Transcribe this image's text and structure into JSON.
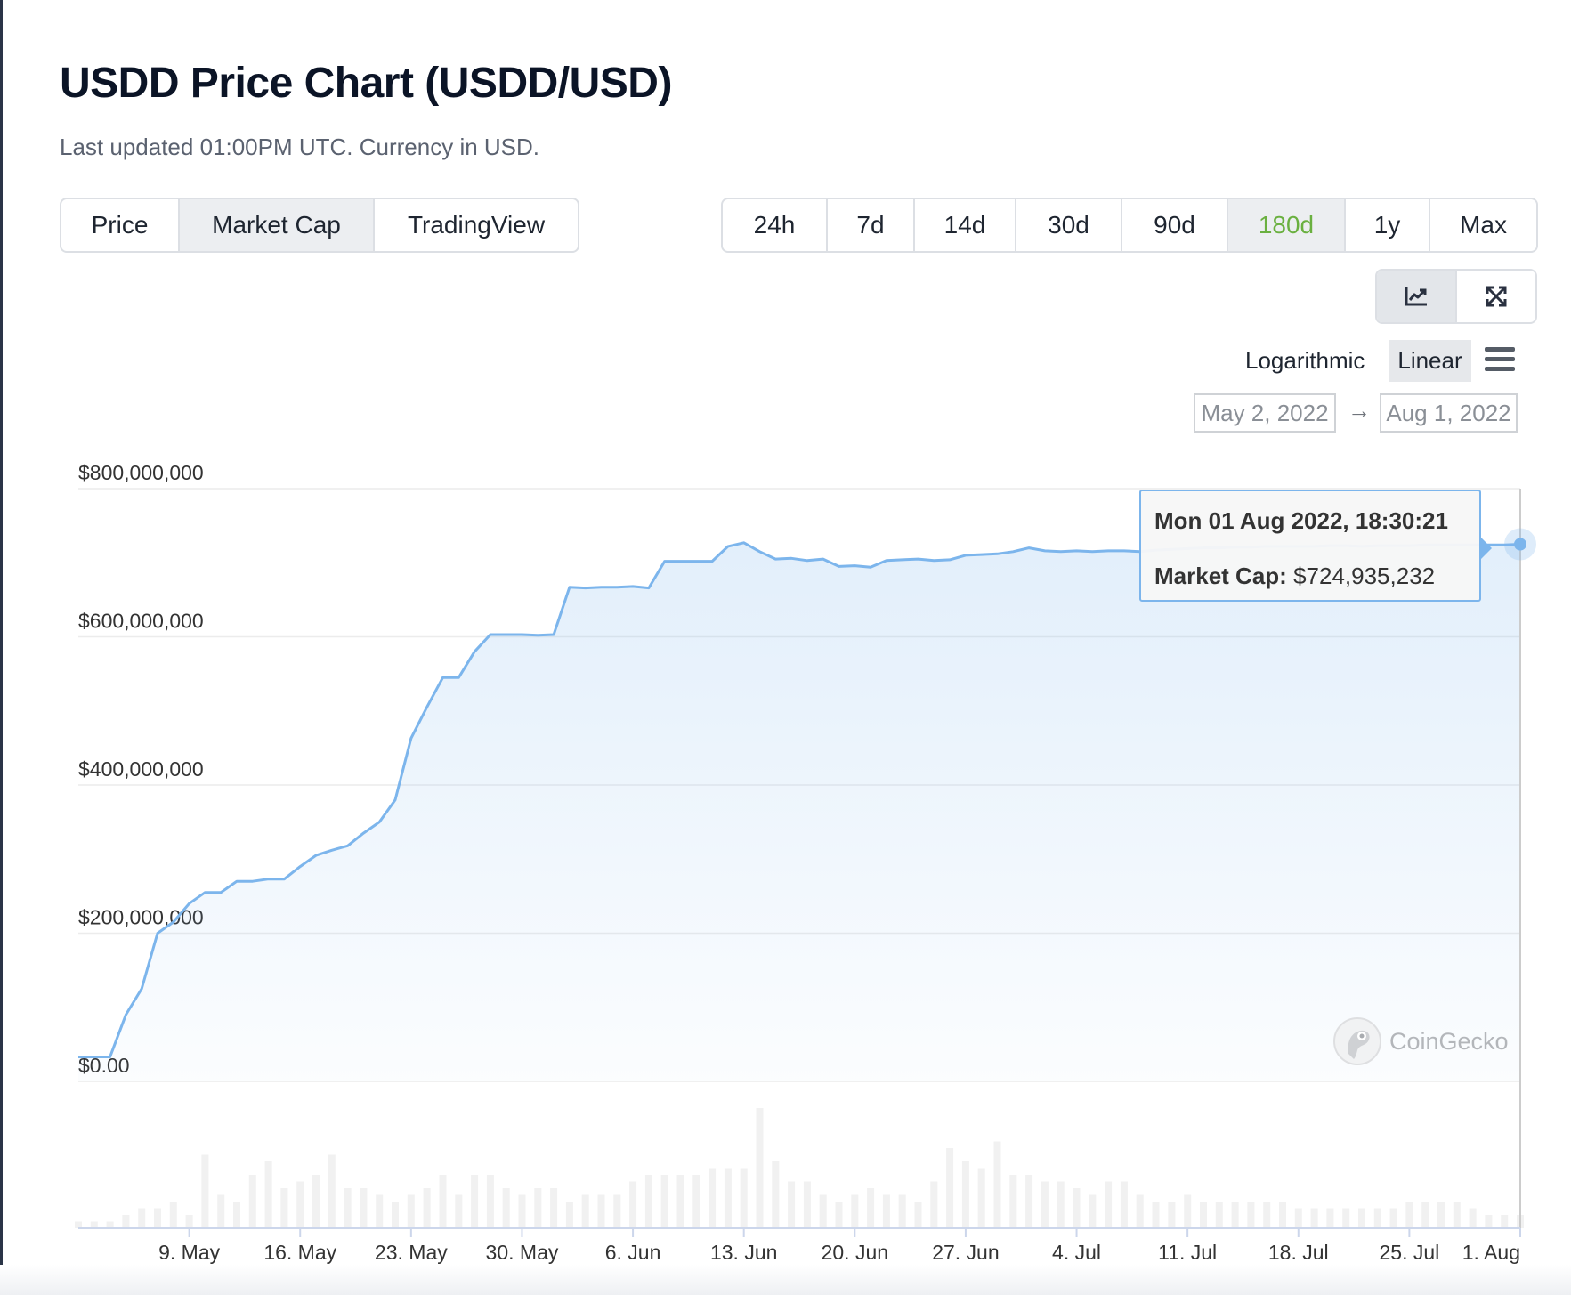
{
  "header": {
    "title": "USDD Price Chart (USDD/USD)",
    "subtitle": "Last updated 01:00PM UTC. Currency in USD."
  },
  "chart_tabs": [
    {
      "label": "Price",
      "active": false
    },
    {
      "label": "Market Cap",
      "active": true
    },
    {
      "label": "TradingView",
      "active": false
    }
  ],
  "time_ranges": [
    {
      "label": "24h",
      "active": false
    },
    {
      "label": "7d",
      "active": false
    },
    {
      "label": "14d",
      "active": false
    },
    {
      "label": "30d",
      "active": false
    },
    {
      "label": "90d",
      "active": false
    },
    {
      "label": "180d",
      "active": true
    },
    {
      "label": "1y",
      "active": false
    },
    {
      "label": "Max",
      "active": false
    }
  ],
  "tools": {
    "chart_icon": "line-chart-icon",
    "expand_icon": "expand-icon",
    "menu_icon": "hamburger-menu-icon"
  },
  "scale": {
    "logarithmic_label": "Logarithmic",
    "linear_label": "Linear",
    "selected": "Linear"
  },
  "date_range": {
    "from": "May 2, 2022",
    "to": "Aug 1, 2022",
    "arrow": "→"
  },
  "tooltip": {
    "date": "Mon 01 Aug 2022, 18:30:21",
    "metric_label": "Market Cap:",
    "metric_value": "$724,935,232"
  },
  "watermark": "CoinGecko",
  "colors": {
    "line": "#7cb5ec",
    "active_range": "#6ab040",
    "volume_bar": "#f1f1f1"
  },
  "chart_data": {
    "type": "area",
    "y_axis": {
      "labels": [
        "$0.00",
        "$200,000,000",
        "$400,000,000",
        "$600,000,000",
        "$800,000,000"
      ],
      "range": [
        0,
        800000000
      ],
      "scale": "linear"
    },
    "x_axis": {
      "labels": [
        "9. May",
        "16. May",
        "23. May",
        "30. May",
        "6. Jun",
        "13. Jun",
        "20. Jun",
        "27. Jun",
        "4. Jul",
        "11. Jul",
        "18. Jul",
        "25. Jul",
        "1. Aug"
      ],
      "range": [
        "2022-05-02",
        "2022-08-01"
      ]
    },
    "grid": true,
    "series": [
      {
        "name": "Market Cap",
        "x": [
          "2022-05-02",
          "2022-05-03",
          "2022-05-04",
          "2022-05-05",
          "2022-05-06",
          "2022-05-07",
          "2022-05-08",
          "2022-05-09",
          "2022-05-10",
          "2022-05-11",
          "2022-05-12",
          "2022-05-13",
          "2022-05-14",
          "2022-05-15",
          "2022-05-16",
          "2022-05-17",
          "2022-05-18",
          "2022-05-19",
          "2022-05-20",
          "2022-05-21",
          "2022-05-22",
          "2022-05-23",
          "2022-05-24",
          "2022-05-25",
          "2022-05-26",
          "2022-05-27",
          "2022-05-28",
          "2022-05-29",
          "2022-05-30",
          "2022-05-31",
          "2022-06-01",
          "2022-06-02",
          "2022-06-03",
          "2022-06-04",
          "2022-06-05",
          "2022-06-06",
          "2022-06-07",
          "2022-06-08",
          "2022-06-09",
          "2022-06-10",
          "2022-06-11",
          "2022-06-12",
          "2022-06-13",
          "2022-06-14",
          "2022-06-15",
          "2022-06-16",
          "2022-06-17",
          "2022-06-18",
          "2022-06-19",
          "2022-06-20",
          "2022-06-21",
          "2022-06-22",
          "2022-06-23",
          "2022-06-24",
          "2022-06-25",
          "2022-06-26",
          "2022-06-27",
          "2022-06-28",
          "2022-06-29",
          "2022-06-30",
          "2022-07-01",
          "2022-07-02",
          "2022-07-03",
          "2022-07-04",
          "2022-07-05",
          "2022-07-06",
          "2022-07-07",
          "2022-07-08",
          "2022-07-09",
          "2022-07-10",
          "2022-07-11",
          "2022-07-12",
          "2022-07-13",
          "2022-07-14",
          "2022-07-15",
          "2022-07-16",
          "2022-07-17",
          "2022-07-18",
          "2022-07-19",
          "2022-07-20",
          "2022-07-21",
          "2022-07-22",
          "2022-07-23",
          "2022-07-24",
          "2022-07-25",
          "2022-07-26",
          "2022-07-27",
          "2022-07-28",
          "2022-07-29",
          "2022-07-30",
          "2022-07-31",
          "2022-08-01"
        ],
        "values": [
          33000000,
          33000000,
          33000000,
          90000000,
          125000000,
          200000000,
          215000000,
          240000000,
          255000000,
          255000000,
          270000000,
          270000000,
          273000000,
          273000000,
          290000000,
          305000000,
          312000000,
          318000000,
          335000000,
          350000000,
          380000000,
          463000000,
          505000000,
          545000000,
          545000000,
          580000000,
          603000000,
          603000000,
          603000000,
          602000000,
          603000000,
          667000000,
          666000000,
          667000000,
          667000000,
          668000000,
          666000000,
          702000000,
          702000000,
          702000000,
          702000000,
          722000000,
          727000000,
          715000000,
          705000000,
          706000000,
          703000000,
          705000000,
          695000000,
          696000000,
          694000000,
          703000000,
          704000000,
          705000000,
          703000000,
          704000000,
          710000000,
          711000000,
          712000000,
          715000000,
          720000000,
          716000000,
          715000000,
          716000000,
          715000000,
          716000000,
          716000000,
          715000000,
          717000000,
          718000000,
          719000000,
          720000000,
          720000000,
          721000000,
          721000000,
          722000000,
          722000000,
          722000000,
          722000000,
          723000000,
          723000000,
          722000000,
          723000000,
          723000000,
          723000000,
          724000000,
          724000000,
          724000000,
          724000000,
          724000000,
          724000000,
          724935232
        ]
      }
    ],
    "volume": [
      1,
      1,
      1,
      2,
      3,
      3,
      4,
      2,
      11,
      5,
      4,
      8,
      10,
      6,
      7,
      8,
      11,
      6,
      6,
      5,
      4,
      5,
      6,
      8,
      5,
      8,
      8,
      6,
      5,
      6,
      6,
      4,
      5,
      5,
      5,
      7,
      8,
      8,
      8,
      8,
      9,
      9,
      9,
      18,
      10,
      7,
      7,
      5,
      4,
      5,
      6,
      5,
      5,
      4,
      7,
      12,
      10,
      9,
      13,
      8,
      8,
      7,
      7,
      6,
      5,
      7,
      7,
      5,
      4,
      4,
      5,
      4,
      4,
      4,
      4,
      4,
      4,
      3,
      3,
      3,
      3,
      3,
      3,
      3,
      4,
      4,
      4,
      4,
      3,
      2,
      2,
      2
    ]
  }
}
